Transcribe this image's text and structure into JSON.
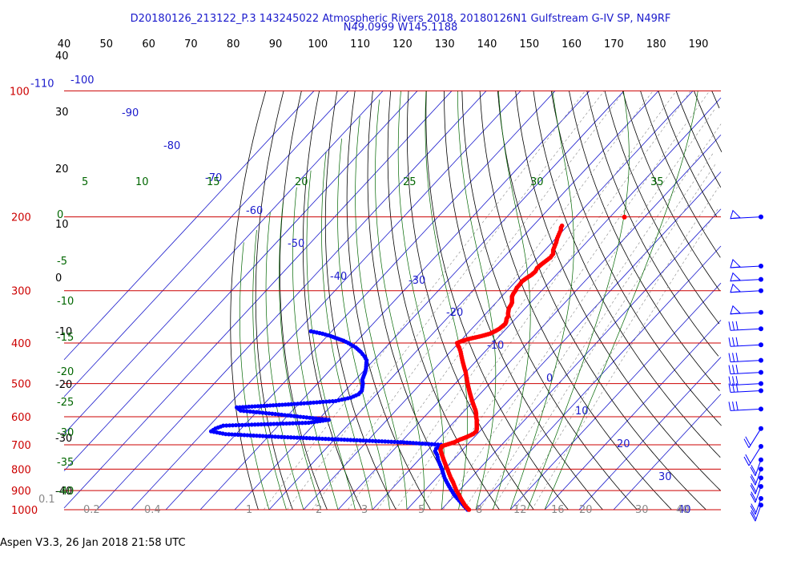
{
  "header": {
    "title_line1": "D20180126_213122_P.3 143245022 Atmospheric Rivers 2018, 20180126N1 Gulfstream G-IV SP, N49RF",
    "title_line2": "N49.0999 W145.1188"
  },
  "footer": {
    "text": "Aspen V3.3, 26 Jan 2018  21:58 UTC"
  },
  "colors": {
    "pressure_line": "#cc0000",
    "isotherm": "#1a1acc",
    "dry_adiabat": "#000000",
    "moist_adiabat": "#006600",
    "mixing_ratio": "#888888",
    "temperature_profile": "#ff0000",
    "dewpoint_profile": "#0000ff",
    "wind_barb": "#0000ff"
  },
  "chart_data": {
    "type": "skew-t",
    "pressure_levels": [
      100,
      200,
      300,
      400,
      500,
      600,
      700,
      800,
      900,
      1000
    ],
    "pressure_label_top": "100",
    "temp_label_top": "-110",
    "top_theta_labels": [
      "40",
      "50",
      "60",
      "70",
      "80",
      "90",
      "100",
      "110",
      "120",
      "130",
      "140",
      "150",
      "160",
      "170",
      "180",
      "190"
    ],
    "isotherm_labels": [
      "-100",
      "-90",
      "-80",
      "-70",
      "-60",
      "-50",
      "-40",
      "-30",
      "-20",
      "-10",
      "0",
      "10",
      "20",
      "30",
      "40"
    ],
    "dry_adiabat_labels": [
      "40",
      "30",
      "20",
      "10",
      "0",
      "-10",
      "-20",
      "-30",
      "-40"
    ],
    "moist_adiabat_labels": [
      "5",
      "10",
      "15",
      "20",
      "25",
      "30",
      "35"
    ],
    "moist_left_labels": [
      "0",
      "-5",
      "-10",
      "-15",
      "-20",
      "-25",
      "-30",
      "-35",
      "-40"
    ],
    "mixing_ratio_labels": [
      "0.1",
      "0.2",
      "0.4",
      "1",
      "2",
      "3",
      "5",
      "8",
      "12",
      "16",
      "20",
      "30",
      "40"
    ],
    "temperature": {
      "pressure": [
        1000,
        980,
        960,
        940,
        920,
        900,
        880,
        860,
        840,
        820,
        800,
        780,
        760,
        740,
        720,
        705,
        690,
        680,
        670,
        660,
        650,
        640,
        630,
        620,
        610,
        600,
        590,
        580,
        570,
        560,
        550,
        540,
        530,
        520,
        510,
        500,
        490,
        480,
        470,
        460,
        450,
        440,
        430,
        420,
        410,
        405,
        400,
        395,
        390,
        385,
        380,
        375,
        370,
        365,
        360,
        355,
        350,
        345,
        340,
        335,
        330,
        325,
        320,
        315,
        310,
        305,
        300,
        295,
        290,
        285,
        280,
        275,
        270,
        265,
        260,
        255,
        250,
        245,
        240,
        235,
        230,
        225,
        220,
        215,
        212,
        210
      ],
      "temp": [
        18.0,
        16.0,
        14.3,
        12.6,
        11.0,
        9.2,
        7.6,
        6.0,
        4.2,
        2.5,
        0.8,
        -1.0,
        -2.8,
        -4.6,
        -6.4,
        -7.0,
        -4.4,
        -3.5,
        -2.2,
        -1.2,
        -1.0,
        -1.6,
        -2.4,
        -3.2,
        -4.0,
        -5.0,
        -5.8,
        -6.8,
        -8.0,
        -9.2,
        -10.4,
        -11.6,
        -12.8,
        -14.0,
        -15.2,
        -16.4,
        -17.6,
        -18.8,
        -20.0,
        -21.4,
        -22.8,
        -24.2,
        -25.6,
        -27.0,
        -28.6,
        -29.6,
        -30.4,
        -29.4,
        -27.6,
        -25.2,
        -23.4,
        -22.6,
        -22.0,
        -21.8,
        -21.6,
        -22.0,
        -22.6,
        -22.8,
        -23.6,
        -24.2,
        -24.8,
        -25.0,
        -25.4,
        -26.2,
        -27.0,
        -27.4,
        -27.6,
        -28.0,
        -28.0,
        -28.2,
        -27.8,
        -27.2,
        -27.0,
        -27.4,
        -27.2,
        -26.8,
        -26.4,
        -26.6,
        -27.6,
        -28.2,
        -28.8,
        -29.6,
        -30.2,
        -30.8,
        -31.4,
        -31.6
      ]
    },
    "dewpoint": {
      "pressure": [
        1000,
        980,
        960,
        940,
        920,
        900,
        880,
        860,
        840,
        820,
        800,
        780,
        760,
        740,
        725,
        715,
        710,
        705,
        700,
        690,
        680,
        670,
        660,
        650,
        640,
        630,
        620,
        610,
        600,
        590,
        580,
        570,
        560,
        550,
        540,
        530,
        520,
        510,
        500,
        490,
        480,
        470,
        460,
        450,
        440,
        430,
        420,
        410,
        400,
        395,
        390,
        385,
        380,
        375
      ],
      "dewp": [
        17.6,
        15.6,
        13.6,
        11.6,
        9.6,
        7.8,
        6.0,
        4.2,
        2.4,
        0.8,
        -0.8,
        -2.6,
        -4.4,
        -6.0,
        -7.6,
        -8.0,
        -7.8,
        -7.2,
        -7.6,
        -20.0,
        -38.0,
        -57.0,
        -73.0,
        -78.0,
        -77.5,
        -76.0,
        -52.0,
        -47.0,
        -56.0,
        -65.0,
        -75.0,
        -77.0,
        -62.0,
        -50.0,
        -46.5,
        -45.2,
        -45.2,
        -46.0,
        -46.8,
        -48.0,
        -48.6,
        -49.2,
        -50.0,
        -51.0,
        -52.0,
        -53.8,
        -56.0,
        -58.6,
        -62.0,
        -64.0,
        -66.5,
        -69.0,
        -72.0,
        -76.0
      ]
    },
    "wind_barbs_pressure": [
      200,
      262,
      282,
      300,
      338,
      370,
      404,
      440,
      470,
      500,
      520,
      575,
      640,
      706,
      760,
      800,
      840,
      880,
      940,
      975
    ]
  }
}
